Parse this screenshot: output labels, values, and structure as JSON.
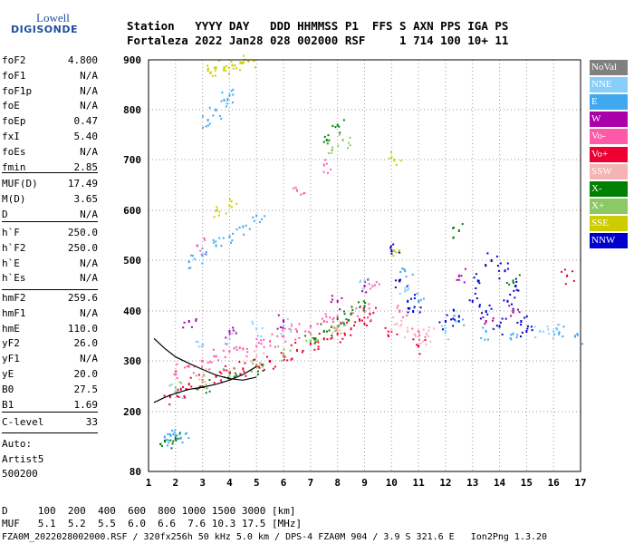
{
  "logo": {
    "line1": "Lowell",
    "line2": "DIGISONDE"
  },
  "header": {
    "row1": "Station   YYYY DAY   DDD HHMMSS P1  FFS S AXN PPS IGA PS",
    "row2": "Fortaleza 2022 Jan28 028 002000 RSF     1 714 100 10+ 11"
  },
  "params": {
    "group1": [
      {
        "name": "foF2",
        "value": "4.800"
      },
      {
        "name": "foF1",
        "value": "N/A"
      },
      {
        "name": "foF1p",
        "value": "N/A"
      },
      {
        "name": "foE",
        "value": "N/A"
      },
      {
        "name": "foEp",
        "value": "0.47"
      },
      {
        "name": "fxI",
        "value": "5.40"
      },
      {
        "name": "foEs",
        "value": "N/A"
      },
      {
        "name": "fmin",
        "value": "2.85"
      }
    ],
    "group2": [
      {
        "name": "MUF(D)",
        "value": "17.49"
      },
      {
        "name": "M(D)",
        "value": "3.65"
      },
      {
        "name": "D",
        "value": "N/A"
      }
    ],
    "group3": [
      {
        "name": "h`F",
        "value": "250.0"
      },
      {
        "name": "h`F2",
        "value": "250.0"
      },
      {
        "name": "h`E",
        "value": "N/A"
      },
      {
        "name": "h`Es",
        "value": "N/A"
      }
    ],
    "group4": [
      {
        "name": "hmF2",
        "value": "259.6"
      },
      {
        "name": "hmF1",
        "value": "N/A"
      },
      {
        "name": "hmE",
        "value": "110.0"
      },
      {
        "name": "yF2",
        "value": "26.0"
      },
      {
        "name": "yF1",
        "value": "N/A"
      },
      {
        "name": "yE",
        "value": "20.0"
      },
      {
        "name": "B0",
        "value": "27.5"
      },
      {
        "name": "B1",
        "value": "1.69"
      }
    ],
    "clevel": {
      "name": "C-level",
      "value": "33"
    }
  },
  "auto": {
    "line1": "Auto:",
    "line2": "Artist5",
    "line3": "500200"
  },
  "bottom": {
    "d_row": "D     100  200  400  600  800 1000 1500 3000 [km]",
    "muf_row": "MUF   5.1  5.2  5.5  6.0  6.6  7.6 10.3 17.5 [MHz]",
    "footer": "FZA0M_2022028002000.RSF / 320fx256h 50 kHz 5.0 km / DPS-4 FZA0M 904 / 3.9 S 321.6 E   Ion2Png 1.3.20"
  },
  "legend": [
    {
      "label": "NoVal",
      "color": "#808080"
    },
    {
      "label": "NNE",
      "color": "#87cefa"
    },
    {
      "label": "E",
      "color": "#40a8f0"
    },
    {
      "label": "W",
      "color": "#aa00aa"
    },
    {
      "label": "Vo-",
      "color": "#ff5aaa"
    },
    {
      "label": "Vo+",
      "color": "#ee0033"
    },
    {
      "label": "SSW",
      "color": "#f4b4b4"
    },
    {
      "label": "X-",
      "color": "#008000"
    },
    {
      "label": "X+",
      "color": "#8cc864"
    },
    {
      "label": "SSE",
      "color": "#cccc00"
    },
    {
      "label": "NNW",
      "color": "#0000cc"
    }
  ],
  "chart_data": {
    "type": "scatter",
    "xlim": [
      1,
      17
    ],
    "ylim": [
      80,
      900
    ],
    "x_ticks": [
      "1",
      "2",
      "3",
      "4",
      "5",
      "6",
      "7",
      "8",
      "9",
      "10",
      "11",
      "12",
      "13",
      "14",
      "15",
      "16",
      "17"
    ],
    "y_ticks": [
      "80",
      "200",
      "300",
      "400",
      "500",
      "600",
      "700",
      "800",
      "900"
    ],
    "grid": true,
    "legend_position": "right",
    "series": [
      {
        "name": "E",
        "color": "#40a8f0",
        "values": [
          [
            1.6,
            150
          ],
          [
            1.8,
            155
          ],
          [
            2.0,
            152
          ],
          [
            2.2,
            148
          ],
          [
            2.5,
            498
          ],
          [
            3.0,
            510
          ],
          [
            3.5,
            530
          ],
          [
            4.0,
            548
          ],
          [
            4.5,
            568
          ],
          [
            5.0,
            590
          ],
          [
            3.2,
            780
          ],
          [
            3.5,
            800
          ],
          [
            3.8,
            820
          ],
          [
            4.0,
            830
          ],
          [
            10.5,
            480
          ],
          [
            11.0,
            420
          ],
          [
            12.5,
            380
          ],
          [
            13.5,
            360
          ],
          [
            14.5,
            355
          ],
          [
            16.2,
            355
          ],
          [
            16.8,
            350
          ]
        ]
      },
      {
        "name": "Vo+",
        "color": "#ee0033",
        "values": [
          [
            1.8,
            230
          ],
          [
            2.2,
            245
          ],
          [
            2.5,
            255
          ],
          [
            3.0,
            262
          ],
          [
            3.5,
            270
          ],
          [
            4.0,
            278
          ],
          [
            4.5,
            285
          ],
          [
            5.0,
            292
          ],
          [
            5.5,
            300
          ],
          [
            6.0,
            310
          ],
          [
            6.5,
            322
          ],
          [
            7.0,
            335
          ],
          [
            7.5,
            345
          ],
          [
            8.0,
            355
          ],
          [
            8.5,
            365
          ],
          [
            9.0,
            375
          ],
          [
            9.2,
            395
          ],
          [
            10.0,
            360
          ],
          [
            11.0,
            330
          ],
          [
            16.5,
            470
          ]
        ]
      },
      {
        "name": "Vo-",
        "color": "#ff5aaa",
        "values": [
          [
            2.0,
            280
          ],
          [
            2.5,
            290
          ],
          [
            3.0,
            300
          ],
          [
            3.5,
            310
          ],
          [
            4.0,
            320
          ],
          [
            4.5,
            325
          ],
          [
            5.0,
            330
          ],
          [
            5.5,
            340
          ],
          [
            6.0,
            350
          ],
          [
            6.5,
            360
          ],
          [
            7.0,
            370
          ],
          [
            7.5,
            380
          ],
          [
            8.0,
            390
          ],
          [
            8.5,
            395
          ],
          [
            9.0,
            400
          ],
          [
            9.3,
            450
          ],
          [
            10.3,
            400
          ],
          [
            11.0,
            360
          ],
          [
            2.8,
            530
          ],
          [
            6.5,
            640
          ],
          [
            7.5,
            690
          ]
        ]
      },
      {
        "name": "X-",
        "color": "#008000",
        "values": [
          [
            1.6,
            142
          ],
          [
            2.0,
            145
          ],
          [
            3.0,
            250
          ],
          [
            4.0,
            265
          ],
          [
            5.0,
            290
          ],
          [
            7.0,
            340
          ],
          [
            7.5,
            360
          ],
          [
            8.0,
            385
          ],
          [
            8.5,
            395
          ],
          [
            9.0,
            410
          ],
          [
            7.6,
            740
          ],
          [
            8.0,
            770
          ],
          [
            12.5,
            560
          ],
          [
            14.5,
            460
          ]
        ]
      },
      {
        "name": "X+",
        "color": "#8cc864",
        "values": [
          [
            2.0,
            248
          ],
          [
            3.0,
            260
          ],
          [
            4.0,
            272
          ],
          [
            5.0,
            290
          ],
          [
            6.0,
            315
          ],
          [
            7.0,
            340
          ],
          [
            8.0,
            370
          ],
          [
            7.8,
            720
          ],
          [
            8.2,
            740
          ]
        ]
      },
      {
        "name": "SSW",
        "color": "#f4b4b4",
        "values": [
          [
            3.0,
            270
          ],
          [
            5.0,
            310
          ],
          [
            8.0,
            360
          ],
          [
            10.2,
            375
          ],
          [
            10.6,
            360
          ],
          [
            11.0,
            350
          ],
          [
            11.3,
            355
          ]
        ]
      },
      {
        "name": "SSE",
        "color": "#cccc00",
        "values": [
          [
            3.2,
            880
          ],
          [
            3.5,
            885
          ],
          [
            3.8,
            885
          ],
          [
            4.1,
            890
          ],
          [
            4.4,
            895
          ],
          [
            4.7,
            898
          ],
          [
            3.5,
            600
          ],
          [
            4.0,
            610
          ],
          [
            10.1,
            520
          ],
          [
            10.1,
            700
          ]
        ]
      },
      {
        "name": "W",
        "color": "#aa00aa",
        "values": [
          [
            2.5,
            380
          ],
          [
            4.0,
            360
          ],
          [
            6.0,
            380
          ],
          [
            8.0,
            420
          ],
          [
            9.0,
            450
          ],
          [
            13.5,
            380
          ],
          [
            14.5,
            400
          ],
          [
            12.5,
            470
          ]
        ]
      },
      {
        "name": "NNW",
        "color": "#0000cc",
        "values": [
          [
            10.0,
            520
          ],
          [
            10.3,
            460
          ],
          [
            10.6,
            420
          ],
          [
            10.8,
            400
          ],
          [
            12.0,
            380
          ],
          [
            12.5,
            390
          ],
          [
            13.0,
            420
          ],
          [
            13.2,
            460
          ],
          [
            13.5,
            400
          ],
          [
            14.0,
            370
          ],
          [
            14.3,
            420
          ],
          [
            14.6,
            450
          ],
          [
            14.8,
            380
          ],
          [
            15.0,
            360
          ],
          [
            13.7,
            500
          ],
          [
            14.2,
            480
          ]
        ]
      },
      {
        "name": "NNE",
        "color": "#87cefa",
        "values": [
          [
            2.0,
            240
          ],
          [
            3.0,
            330
          ],
          [
            4.0,
            345
          ],
          [
            5.0,
            365
          ],
          [
            6.0,
            372
          ],
          [
            9.0,
            460
          ],
          [
            10.5,
            440
          ],
          [
            12.0,
            360
          ],
          [
            15.5,
            360
          ],
          [
            16.0,
            360
          ]
        ]
      }
    ],
    "profile_curve": {
      "color": "#000000",
      "values": [
        [
          1.2,
          345
        ],
        [
          1.6,
          325
        ],
        [
          2.0,
          308
        ],
        [
          2.5,
          295
        ],
        [
          3.0,
          283
        ],
        [
          3.5,
          272
        ],
        [
          4.0,
          265
        ],
        [
          4.5,
          262
        ],
        [
          5.0,
          268
        ]
      ]
    },
    "virtual_trace": {
      "color": "#000000",
      "values": [
        [
          1.2,
          218
        ],
        [
          1.6,
          228
        ],
        [
          2.0,
          236
        ],
        [
          2.5,
          244
        ],
        [
          3.0,
          248
        ],
        [
          3.5,
          254
        ],
        [
          4.0,
          262
        ],
        [
          4.5,
          273
        ],
        [
          5.0,
          289
        ]
      ]
    }
  }
}
